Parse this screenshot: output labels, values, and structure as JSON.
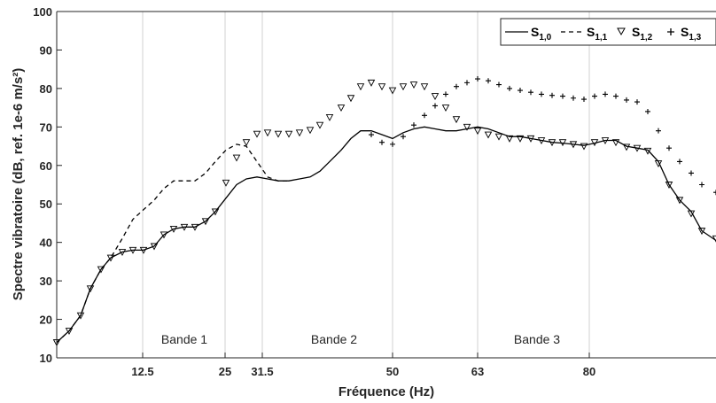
{
  "chart_data": {
    "type": "line",
    "title": "",
    "xlabel": "Fréquence (Hz)",
    "ylabel": "Spectre vibratoire (dB, ref. 1e-6 m/s²)",
    "ylim": [
      10,
      100
    ],
    "yticks": [
      10,
      20,
      30,
      40,
      50,
      60,
      70,
      80,
      90,
      100
    ],
    "xticks": [
      "12.5",
      "25",
      "31.5",
      "50",
      "63",
      "80"
    ],
    "grid": "vertical lines at bands",
    "legend_position": "top-right",
    "bands": [
      "Bande 1",
      "Bande 2",
      "Bande 3"
    ],
    "legend": [
      {
        "base": "S",
        "sub": "1,0"
      },
      {
        "base": "S",
        "sub": "1,1"
      },
      {
        "base": "S",
        "sub": "1,2"
      },
      {
        "base": "S",
        "sub": "1,3"
      }
    ],
    "series": [
      {
        "style": "solid",
        "points": [
          [
            64,
            14
          ],
          [
            78,
            17
          ],
          [
            91,
            21
          ],
          [
            102,
            28
          ],
          [
            114,
            33
          ],
          [
            125,
            36
          ],
          [
            138,
            37.5
          ],
          [
            150,
            38
          ],
          [
            162,
            38
          ],
          [
            174,
            39
          ],
          [
            185,
            42
          ],
          [
            196,
            43.5
          ],
          [
            208,
            44
          ],
          [
            220,
            44
          ],
          [
            232,
            45.5
          ],
          [
            243,
            48
          ],
          [
            255,
            51.5
          ],
          [
            267,
            55
          ],
          [
            278,
            56.5
          ],
          [
            290,
            57
          ],
          [
            302,
            56.5
          ],
          [
            314,
            56
          ],
          [
            326,
            56
          ],
          [
            338,
            56.5
          ],
          [
            350,
            57
          ],
          [
            361,
            58.5
          ],
          [
            372,
            61
          ],
          [
            385,
            64
          ],
          [
            396,
            67
          ],
          [
            407,
            69
          ],
          [
            419,
            69
          ],
          [
            431,
            68
          ],
          [
            443,
            67
          ],
          [
            455,
            68.5
          ],
          [
            467,
            69.5
          ],
          [
            479,
            70
          ],
          [
            491,
            69.5
          ],
          [
            503,
            69
          ],
          [
            515,
            69
          ],
          [
            527,
            69.5
          ],
          [
            539,
            70
          ],
          [
            551,
            69.5
          ],
          [
            563,
            68.5
          ],
          [
            575,
            67.5
          ],
          [
            587,
            67.5
          ],
          [
            599,
            67
          ],
          [
            611,
            66.5
          ],
          [
            623,
            66
          ],
          [
            635,
            65.8
          ],
          [
            647,
            65.5
          ],
          [
            659,
            65.2
          ],
          [
            671,
            65.8
          ],
          [
            683,
            66.5
          ],
          [
            695,
            66.5
          ],
          [
            707,
            65
          ],
          [
            719,
            64.5
          ],
          [
            731,
            64
          ],
          [
            743,
            61
          ],
          [
            755,
            55
          ],
          [
            767,
            51
          ],
          [
            780,
            48
          ],
          [
            792,
            43
          ],
          [
            808,
            40.5
          ]
        ]
      },
      {
        "style": "dashed",
        "points": [
          [
            64,
            14
          ],
          [
            78,
            17
          ],
          [
            91,
            21
          ],
          [
            102,
            28
          ],
          [
            114,
            33
          ],
          [
            125,
            36
          ],
          [
            138,
            41
          ],
          [
            150,
            46
          ],
          [
            162,
            48.5
          ],
          [
            174,
            51
          ],
          [
            185,
            54
          ],
          [
            196,
            56
          ],
          [
            208,
            56
          ],
          [
            220,
            56
          ],
          [
            232,
            58
          ],
          [
            243,
            61
          ],
          [
            255,
            64
          ],
          [
            267,
            65.5
          ],
          [
            278,
            65
          ],
          [
            290,
            61
          ],
          [
            302,
            57
          ],
          [
            314,
            56
          ],
          [
            326,
            56
          ]
        ]
      },
      {
        "style": "triangles",
        "points": [
          [
            64,
            14
          ],
          [
            78,
            17
          ],
          [
            91,
            21
          ],
          [
            102,
            28
          ],
          [
            114,
            33
          ],
          [
            125,
            36
          ],
          [
            138,
            37.5
          ],
          [
            150,
            38
          ],
          [
            162,
            38
          ],
          [
            174,
            39
          ],
          [
            185,
            42
          ],
          [
            196,
            43.5
          ],
          [
            208,
            44
          ],
          [
            220,
            44
          ],
          [
            232,
            45.5
          ],
          [
            243,
            48
          ],
          [
            255,
            55.5
          ],
          [
            267,
            62
          ],
          [
            278,
            66
          ],
          [
            290,
            68.2
          ],
          [
            302,
            68.5
          ],
          [
            314,
            68.2
          ],
          [
            326,
            68.2
          ],
          [
            338,
            68.5
          ],
          [
            350,
            69.2
          ],
          [
            361,
            70.5
          ],
          [
            372,
            72.5
          ],
          [
            385,
            75
          ],
          [
            396,
            77.5
          ],
          [
            407,
            80.5
          ],
          [
            419,
            81.5
          ],
          [
            431,
            80.5
          ],
          [
            443,
            79.5
          ],
          [
            455,
            80.5
          ],
          [
            467,
            81
          ],
          [
            479,
            80.5
          ],
          [
            491,
            78
          ],
          [
            503,
            75
          ],
          [
            515,
            72
          ],
          [
            527,
            70
          ],
          [
            539,
            69
          ],
          [
            551,
            68
          ],
          [
            563,
            67.5
          ],
          [
            575,
            67
          ],
          [
            587,
            67
          ],
          [
            599,
            67
          ],
          [
            611,
            66.5
          ],
          [
            623,
            66
          ],
          [
            635,
            66
          ],
          [
            647,
            65.5
          ],
          [
            659,
            65
          ],
          [
            671,
            66
          ],
          [
            683,
            66.5
          ],
          [
            695,
            66
          ],
          [
            707,
            64.8
          ],
          [
            719,
            64.5
          ],
          [
            731,
            63.8
          ],
          [
            743,
            60.5
          ],
          [
            755,
            55
          ],
          [
            767,
            51
          ],
          [
            780,
            47.5
          ],
          [
            792,
            43
          ],
          [
            808,
            41
          ]
        ]
      },
      {
        "style": "crosses",
        "points": [
          [
            419,
            68
          ],
          [
            431,
            66
          ],
          [
            443,
            65.5
          ],
          [
            455,
            67.5
          ],
          [
            467,
            70.5
          ],
          [
            479,
            73
          ],
          [
            491,
            75.5
          ],
          [
            503,
            78.5
          ],
          [
            515,
            80.5
          ],
          [
            527,
            81.5
          ],
          [
            539,
            82.5
          ],
          [
            551,
            82
          ],
          [
            563,
            81
          ],
          [
            575,
            80
          ],
          [
            587,
            79.5
          ],
          [
            599,
            79
          ],
          [
            611,
            78.5
          ],
          [
            623,
            78.2
          ],
          [
            635,
            78
          ],
          [
            647,
            77.5
          ],
          [
            659,
            77.2
          ],
          [
            671,
            78
          ],
          [
            683,
            78.5
          ],
          [
            695,
            78
          ],
          [
            707,
            77
          ],
          [
            719,
            76.5
          ],
          [
            731,
            74
          ],
          [
            743,
            69
          ],
          [
            755,
            64.5
          ],
          [
            767,
            61
          ],
          [
            780,
            58
          ],
          [
            792,
            55
          ],
          [
            808,
            53
          ]
        ]
      }
    ]
  }
}
